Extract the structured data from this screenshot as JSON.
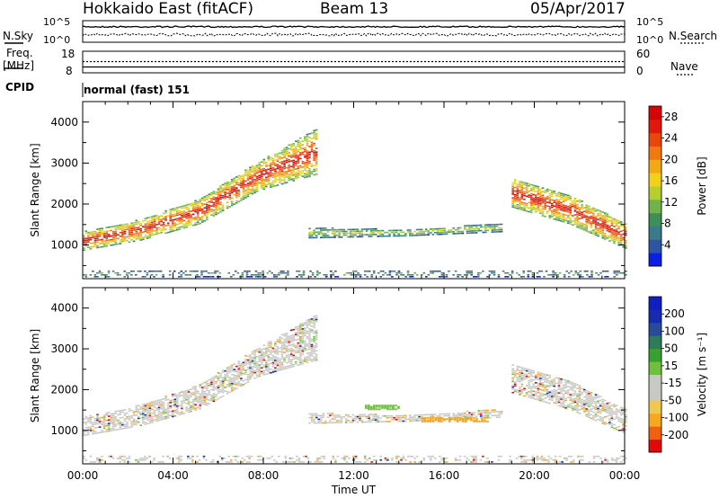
{
  "header": {
    "station": "Hokkaido East (fitACF)",
    "beam": "Beam 13",
    "date": "05/Apr/2017"
  },
  "top_panels": {
    "nsky_label": "N.Sky",
    "nsearch_label": "N.Search",
    "noise_ticks": [
      "10^5",
      "10^0"
    ],
    "freq_label": "Freq.",
    "freq_unit": "[MHz]",
    "freq_ticks": [
      "18",
      "8"
    ],
    "nave_label": "Nave",
    "nave_ticks": [
      "60",
      "0"
    ],
    "cpid_label": "CPID",
    "cpid_value": "normal (fast) 151"
  },
  "colors": {
    "power_scale": [
      "#0a1ee6",
      "#2e54a6",
      "#3a7a8c",
      "#3d8f5a",
      "#6fb34a",
      "#b4cf2e",
      "#f0d21c",
      "#f5a814",
      "#f07a10",
      "#e8460c",
      "#e01a0a",
      "#d40505"
    ],
    "velocity_scale": [
      "#e00a0a",
      "#f06010",
      "#f5a820",
      "#f0c850",
      "#c8c8c4",
      "#c8c8c4",
      "#70c040",
      "#3aa030",
      "#2e7a5a",
      "#2a4a9a",
      "#1a2ab0",
      "#1020c0"
    ]
  },
  "chart_data": [
    {
      "type": "heatmap",
      "title": "",
      "xlabel": "Time UT",
      "ylabel": "Slant Range [km]",
      "x_ticks": [
        "00:00",
        "04:00",
        "08:00",
        "12:00",
        "16:00",
        "20:00",
        "00:00"
      ],
      "y_ticks": [
        "1000",
        "2000",
        "3000",
        "4000"
      ],
      "ylim": [
        180,
        4500
      ],
      "colorbar_label": "Power [dB]",
      "colorbar_ticks": [
        "4",
        "8",
        "12",
        "16",
        "20",
        "24",
        "28"
      ],
      "colorbar_range": [
        0,
        30
      ],
      "echo_regions": [
        {
          "t_start": 0.0,
          "t_end": 10.3,
          "range_low": [
            850,
            1100,
            1500,
            2300,
            2700
          ],
          "range_high": [
            1300,
            1600,
            2100,
            3000,
            3800
          ],
          "peak_power": 28
        },
        {
          "t_start": 10.0,
          "t_end": 18.5,
          "range_low": [
            1150,
            1200,
            1300
          ],
          "range_high": [
            1400,
            1350,
            1500
          ],
          "peak_power": 14
        },
        {
          "t_start": 19.0,
          "t_end": 24.0,
          "range_low": [
            1900,
            1500,
            900
          ],
          "range_high": [
            2600,
            2200,
            1500
          ],
          "peak_power": 28
        },
        {
          "t_start": 0.0,
          "t_end": 24.0,
          "range_low": [
            200
          ],
          "range_high": [
            350
          ],
          "peak_power": 10
        }
      ]
    },
    {
      "type": "heatmap",
      "title": "",
      "xlabel": "Time UT",
      "ylabel": "Slant Range [km]",
      "x_ticks": [
        "00:00",
        "04:00",
        "08:00",
        "12:00",
        "16:00",
        "20:00",
        "00:00"
      ],
      "y_ticks": [
        "1000",
        "2000",
        "3000",
        "4000"
      ],
      "ylim": [
        180,
        4500
      ],
      "colorbar_label": "Velocity [m s⁻¹]",
      "colorbar_ticks": [
        "200",
        "100",
        "50",
        "15",
        "-15",
        "-50",
        "-100",
        "-200"
      ],
      "colorbar_range": [
        -250,
        250
      ],
      "dominant_velocity": "-15 to 15",
      "notable_regions": [
        {
          "t_start": 15.0,
          "t_end": 18.0,
          "range_km": 1300,
          "velocity": -50
        },
        {
          "t_start": 12.5,
          "t_end": 14.0,
          "range_km": 1600,
          "velocity": 50
        }
      ]
    }
  ]
}
